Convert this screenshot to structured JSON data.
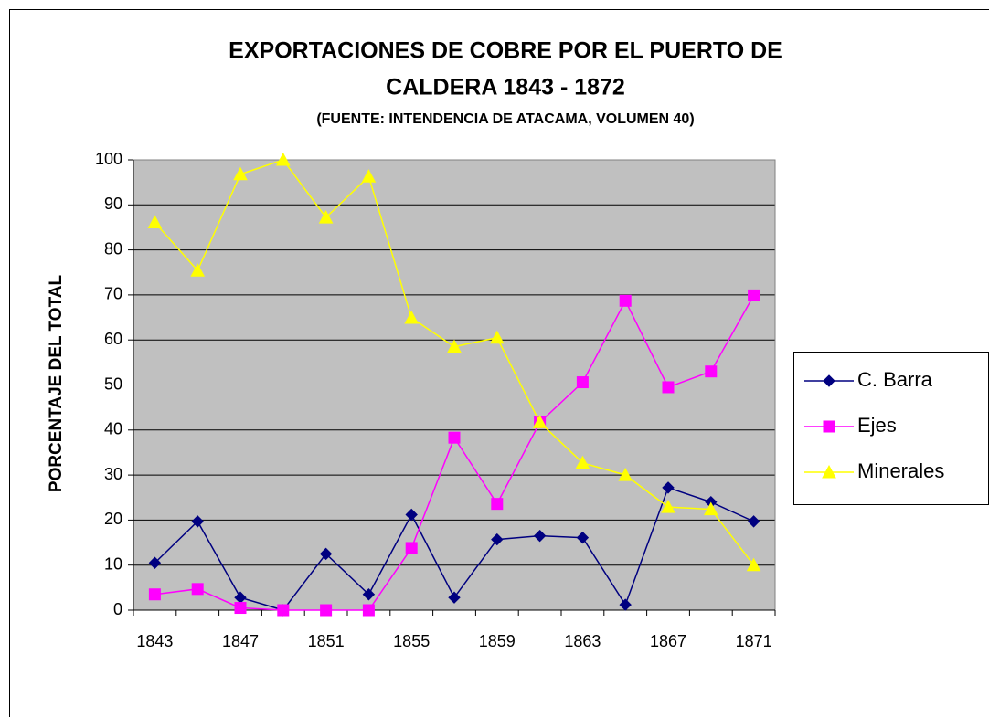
{
  "chart_data": {
    "type": "line",
    "title": "EXPORTACIONES DE COBRE POR EL PUERTO DE CALDERA 1843 - 1872",
    "subtitle": "(FUENTE: INTENDENCIA DE ATACAMA, VOLUMEN 40)",
    "y_label": "PORCENTAJE DEL TOTAL",
    "categories": [
      "1843",
      null,
      "1847",
      null,
      "1851",
      null,
      "1855",
      null,
      "1859",
      null,
      "1863",
      null,
      "1867",
      null,
      "1871"
    ],
    "series": [
      {
        "name": "C. Barra",
        "color": "#000080",
        "marker": "diamond",
        "values": [
          10.5,
          19.7,
          2.8,
          0,
          12.5,
          3.5,
          21.2,
          2.8,
          15.7,
          16.5,
          16.1,
          1.2,
          27.2,
          24,
          19.7
        ]
      },
      {
        "name": "Ejes",
        "color": "#ff00ff",
        "marker": "square",
        "values": [
          3.5,
          4.7,
          0.5,
          0,
          0,
          0,
          13.8,
          38.3,
          23.6,
          41.7,
          50.6,
          68.7,
          49.5,
          53,
          69.9
        ]
      },
      {
        "name": "Minerales",
        "color": "#ffff00",
        "marker": "triangle",
        "values": [
          86.1,
          75.4,
          96.8,
          100,
          87.2,
          96.3,
          64.9,
          58.5,
          60.5,
          41.7,
          32.7,
          30,
          22.9,
          22.4,
          10
        ]
      }
    ],
    "ylim": [
      0,
      100
    ],
    "yticks": [
      0,
      10,
      20,
      30,
      40,
      50,
      60,
      70,
      80,
      90,
      100
    ],
    "grid": true,
    "legend": "right",
    "plot_background": "#c0c0c0"
  }
}
